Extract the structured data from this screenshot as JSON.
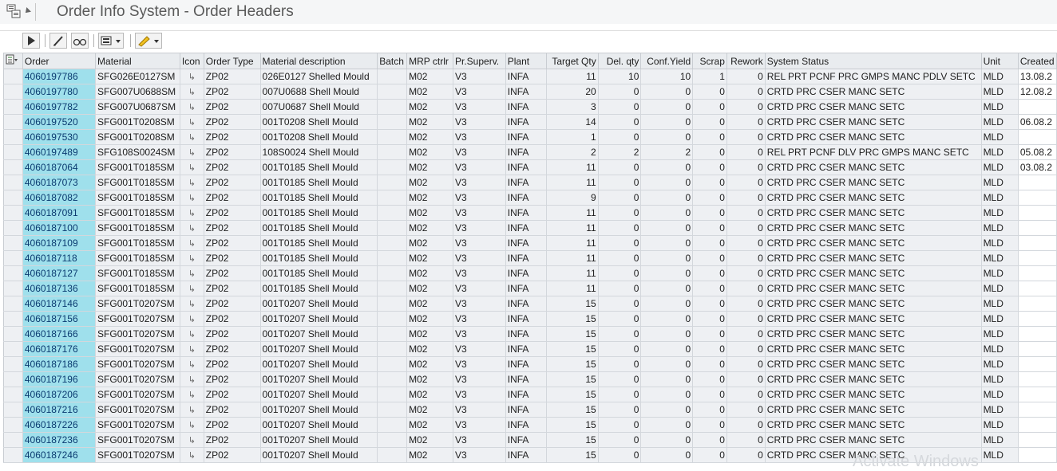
{
  "window": {
    "title": "Order Info System - Order Headers"
  },
  "toolbar": {
    "buttons": [
      {
        "name": "execute-button",
        "icon": "play-icon"
      },
      {
        "name": "edit-button",
        "icon": "pencil-icon"
      },
      {
        "name": "display-button",
        "icon": "glasses-icon"
      },
      {
        "name": "settings-button",
        "icon": "layout-icon"
      },
      {
        "name": "highlight-button",
        "icon": "marker-icon"
      }
    ]
  },
  "table": {
    "columns": [
      "Order",
      "Material",
      "Icon",
      "Order Type",
      "Material description",
      "Batch",
      "MRP ctrlr",
      "Pr.Superv.",
      "Plant",
      "Target Qty",
      "Del. qty",
      "Conf.Yield",
      "Scrap",
      "Rework",
      "System Status",
      "Unit",
      "Created"
    ],
    "rows": [
      [
        "4060197786",
        "SFG026E0127SM",
        "↳",
        "ZP02",
        "026E0127 Shelled Mould",
        "",
        "M02",
        "V3",
        "INFA",
        "11",
        "10",
        "10",
        "1",
        "0",
        "REL  PRT  PCNF PRC  GMPS MANC PDLV SETC",
        "MLD",
        "13.08.2"
      ],
      [
        "4060197780",
        "SFG007U0688SM",
        "↳",
        "ZP02",
        "007U0688 Shell Mould",
        "",
        "M02",
        "V3",
        "INFA",
        "20",
        "0",
        "0",
        "0",
        "0",
        "CRTD PRC  CSER MANC SETC",
        "MLD",
        "12.08.2"
      ],
      [
        "4060197782",
        "SFG007U0687SM",
        "↳",
        "ZP02",
        "007U0687 Shell Mould",
        "",
        "M02",
        "V3",
        "INFA",
        "3",
        "0",
        "0",
        "0",
        "0",
        "CRTD PRC  CSER MANC SETC",
        "MLD",
        ""
      ],
      [
        "4060197520",
        "SFG001T0208SM",
        "↳",
        "ZP02",
        "001T0208 Shell Mould",
        "",
        "M02",
        "V3",
        "INFA",
        "14",
        "0",
        "0",
        "0",
        "0",
        "CRTD PRC  CSER MANC SETC",
        "MLD",
        "06.08.2"
      ],
      [
        "4060197530",
        "SFG001T0208SM",
        "↳",
        "ZP02",
        "001T0208 Shell Mould",
        "",
        "M02",
        "V3",
        "INFA",
        "1",
        "0",
        "0",
        "0",
        "0",
        "CRTD PRC  CSER MANC SETC",
        "MLD",
        ""
      ],
      [
        "4060197489",
        "SFG108S0024SM",
        "↳",
        "ZP02",
        "108S0024 Shell Mould",
        "",
        "M02",
        "V3",
        "INFA",
        "2",
        "2",
        "2",
        "0",
        "0",
        "REL  PRT  PCNF DLV  PRC  GMPS MANC SETC",
        "MLD",
        "05.08.2"
      ],
      [
        "4060187064",
        "SFG001T0185SM",
        "↳",
        "ZP02",
        "001T0185 Shell Mould",
        "",
        "M02",
        "V3",
        "INFA",
        "11",
        "0",
        "0",
        "0",
        "0",
        "CRTD PRC  CSER MANC SETC",
        "MLD",
        "03.08.2"
      ],
      [
        "4060187073",
        "SFG001T0185SM",
        "↳",
        "ZP02",
        "001T0185 Shell Mould",
        "",
        "M02",
        "V3",
        "INFA",
        "11",
        "0",
        "0",
        "0",
        "0",
        "CRTD PRC  CSER MANC SETC",
        "MLD",
        ""
      ],
      [
        "4060187082",
        "SFG001T0185SM",
        "↳",
        "ZP02",
        "001T0185 Shell Mould",
        "",
        "M02",
        "V3",
        "INFA",
        "9",
        "0",
        "0",
        "0",
        "0",
        "CRTD PRC  CSER MANC SETC",
        "MLD",
        ""
      ],
      [
        "4060187091",
        "SFG001T0185SM",
        "↳",
        "ZP02",
        "001T0185 Shell Mould",
        "",
        "M02",
        "V3",
        "INFA",
        "11",
        "0",
        "0",
        "0",
        "0",
        "CRTD PRC  CSER MANC SETC",
        "MLD",
        ""
      ],
      [
        "4060187100",
        "SFG001T0185SM",
        "↳",
        "ZP02",
        "001T0185 Shell Mould",
        "",
        "M02",
        "V3",
        "INFA",
        "11",
        "0",
        "0",
        "0",
        "0",
        "CRTD PRC  CSER MANC SETC",
        "MLD",
        ""
      ],
      [
        "4060187109",
        "SFG001T0185SM",
        "↳",
        "ZP02",
        "001T0185 Shell Mould",
        "",
        "M02",
        "V3",
        "INFA",
        "11",
        "0",
        "0",
        "0",
        "0",
        "CRTD PRC  CSER MANC SETC",
        "MLD",
        ""
      ],
      [
        "4060187118",
        "SFG001T0185SM",
        "↳",
        "ZP02",
        "001T0185 Shell Mould",
        "",
        "M02",
        "V3",
        "INFA",
        "11",
        "0",
        "0",
        "0",
        "0",
        "CRTD PRC  CSER MANC SETC",
        "MLD",
        ""
      ],
      [
        "4060187127",
        "SFG001T0185SM",
        "↳",
        "ZP02",
        "001T0185 Shell Mould",
        "",
        "M02",
        "V3",
        "INFA",
        "11",
        "0",
        "0",
        "0",
        "0",
        "CRTD PRC  CSER MANC SETC",
        "MLD",
        ""
      ],
      [
        "4060187136",
        "SFG001T0185SM",
        "↳",
        "ZP02",
        "001T0185 Shell Mould",
        "",
        "M02",
        "V3",
        "INFA",
        "11",
        "0",
        "0",
        "0",
        "0",
        "CRTD PRC  CSER MANC SETC",
        "MLD",
        ""
      ],
      [
        "4060187146",
        "SFG001T0207SM",
        "↳",
        "ZP02",
        "001T0207 Shell Mould",
        "",
        "M02",
        "V3",
        "INFA",
        "15",
        "0",
        "0",
        "0",
        "0",
        "CRTD PRC  CSER MANC SETC",
        "MLD",
        ""
      ],
      [
        "4060187156",
        "SFG001T0207SM",
        "↳",
        "ZP02",
        "001T0207 Shell Mould",
        "",
        "M02",
        "V3",
        "INFA",
        "15",
        "0",
        "0",
        "0",
        "0",
        "CRTD PRC  CSER MANC SETC",
        "MLD",
        ""
      ],
      [
        "4060187166",
        "SFG001T0207SM",
        "↳",
        "ZP02",
        "001T0207 Shell Mould",
        "",
        "M02",
        "V3",
        "INFA",
        "15",
        "0",
        "0",
        "0",
        "0",
        "CRTD PRC  CSER MANC SETC",
        "MLD",
        ""
      ],
      [
        "4060187176",
        "SFG001T0207SM",
        "↳",
        "ZP02",
        "001T0207 Shell Mould",
        "",
        "M02",
        "V3",
        "INFA",
        "15",
        "0",
        "0",
        "0",
        "0",
        "CRTD PRC  CSER MANC SETC",
        "MLD",
        ""
      ],
      [
        "4060187186",
        "SFG001T0207SM",
        "↳",
        "ZP02",
        "001T0207 Shell Mould",
        "",
        "M02",
        "V3",
        "INFA",
        "15",
        "0",
        "0",
        "0",
        "0",
        "CRTD PRC  CSER MANC SETC",
        "MLD",
        ""
      ],
      [
        "4060187196",
        "SFG001T0207SM",
        "↳",
        "ZP02",
        "001T0207 Shell Mould",
        "",
        "M02",
        "V3",
        "INFA",
        "15",
        "0",
        "0",
        "0",
        "0",
        "CRTD PRC  CSER MANC SETC",
        "MLD",
        ""
      ],
      [
        "4060187206",
        "SFG001T0207SM",
        "↳",
        "ZP02",
        "001T0207 Shell Mould",
        "",
        "M02",
        "V3",
        "INFA",
        "15",
        "0",
        "0",
        "0",
        "0",
        "CRTD PRC  CSER MANC SETC",
        "MLD",
        ""
      ],
      [
        "4060187216",
        "SFG001T0207SM",
        "↳",
        "ZP02",
        "001T0207 Shell Mould",
        "",
        "M02",
        "V3",
        "INFA",
        "15",
        "0",
        "0",
        "0",
        "0",
        "CRTD PRC  CSER MANC SETC",
        "MLD",
        ""
      ],
      [
        "4060187226",
        "SFG001T0207SM",
        "↳",
        "ZP02",
        "001T0207 Shell Mould",
        "",
        "M02",
        "V3",
        "INFA",
        "15",
        "0",
        "0",
        "0",
        "0",
        "CRTD PRC  CSER MANC SETC",
        "MLD",
        ""
      ],
      [
        "4060187236",
        "SFG001T0207SM",
        "↳",
        "ZP02",
        "001T0207 Shell Mould",
        "",
        "M02",
        "V3",
        "INFA",
        "15",
        "0",
        "0",
        "0",
        "0",
        "CRTD PRC  CSER MANC SETC",
        "MLD",
        ""
      ],
      [
        "4060187246",
        "SFG001T0207SM",
        "↳",
        "ZP02",
        "001T0207 Shell Mould",
        "",
        "M02",
        "V3",
        "INFA",
        "15",
        "0",
        "0",
        "0",
        "0",
        "CRTD PRC  CSER MANC SETC",
        "MLD",
        ""
      ]
    ]
  },
  "watermark": "Activate Windows"
}
